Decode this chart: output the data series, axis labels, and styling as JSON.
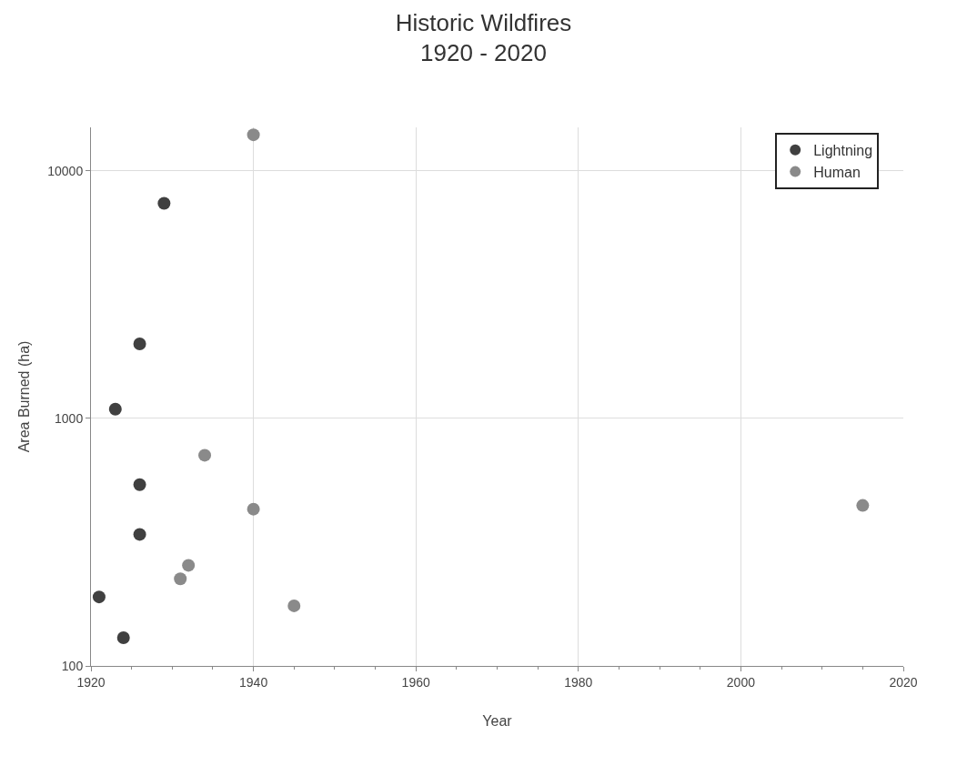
{
  "chart_data": {
    "type": "scatter",
    "title": "Historic Wildfires",
    "subtitle": "1920 - 2020",
    "xlabel": "Year",
    "ylabel": "Area Burned (ha)",
    "series": [
      {
        "name": "Lightning",
        "color": "#404040",
        "x": [
          1921,
          1923,
          1924,
          1926,
          1926,
          1926,
          1929
        ],
        "values": [
          190,
          1090,
          130,
          2000,
          540,
          340,
          7400
        ]
      },
      {
        "name": "Human",
        "color": "#8a8a8a",
        "x": [
          1940,
          1934,
          1940,
          1931,
          1932,
          1945,
          2015
        ],
        "values": [
          14000,
          710,
          430,
          225,
          255,
          175,
          445
        ]
      }
    ],
    "xlim": [
      1920,
      2020
    ],
    "xticks": [
      1920,
      1940,
      1960,
      1980,
      2000,
      2020
    ],
    "ylim": [
      100,
      15000
    ],
    "yticks": [
      100,
      1000,
      10000
    ],
    "log": "y",
    "grid": true,
    "legend": "top right",
    "marker": "circle"
  }
}
